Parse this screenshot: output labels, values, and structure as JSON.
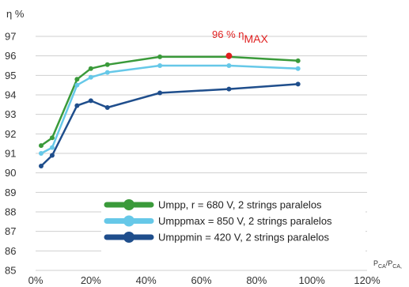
{
  "chart_data": {
    "type": "line",
    "ylabel": "η %",
    "xlabel_main": "P",
    "xlabel_sub1": "CA",
    "xlabel_sep": "/P",
    "xlabel_sub2": "CA,",
    "xlim": [
      0,
      120
    ],
    "ylim": [
      85,
      97
    ],
    "xticks": [
      0,
      20,
      40,
      60,
      80,
      100,
      120
    ],
    "xtick_labels": [
      "0%",
      "20%",
      "40%",
      "60%",
      "80%",
      "100%",
      "120%"
    ],
    "yticks": [
      85,
      86,
      87,
      88,
      89,
      90,
      91,
      92,
      93,
      94,
      95,
      96,
      97
    ],
    "grid": "horizontal",
    "legend_position": "lower-right",
    "series": [
      {
        "name": "Umpp, r = 680 V, 2 strings paralelos",
        "color": "#3a9a3a",
        "points": [
          [
            2,
            91.4
          ],
          [
            6,
            91.8
          ],
          [
            15,
            94.8
          ],
          [
            20,
            95.35
          ],
          [
            26,
            95.55
          ],
          [
            45,
            95.95
          ],
          [
            70,
            95.95
          ],
          [
            95,
            95.75
          ]
        ]
      },
      {
        "name": "Umppmax = 850 V, 2 strings paralelos",
        "color": "#66c8e8",
        "points": [
          [
            2,
            91.0
          ],
          [
            6,
            91.3
          ],
          [
            15,
            94.5
          ],
          [
            20,
            94.9
          ],
          [
            26,
            95.15
          ],
          [
            45,
            95.5
          ],
          [
            70,
            95.5
          ],
          [
            95,
            95.35
          ]
        ]
      },
      {
        "name": "Umppmin = 420 V, 2 strings paralelos",
        "color": "#1f4e8c",
        "points": [
          [
            2,
            90.35
          ],
          [
            6,
            90.9
          ],
          [
            15,
            93.45
          ],
          [
            20,
            93.7
          ],
          [
            26,
            93.35
          ],
          [
            45,
            94.1
          ],
          [
            70,
            94.3
          ],
          [
            95,
            94.55
          ]
        ]
      }
    ],
    "annotation": {
      "text_main": "96 % η",
      "text_sub": "MAX",
      "point": [
        70,
        96
      ],
      "color": "#e02020"
    }
  }
}
